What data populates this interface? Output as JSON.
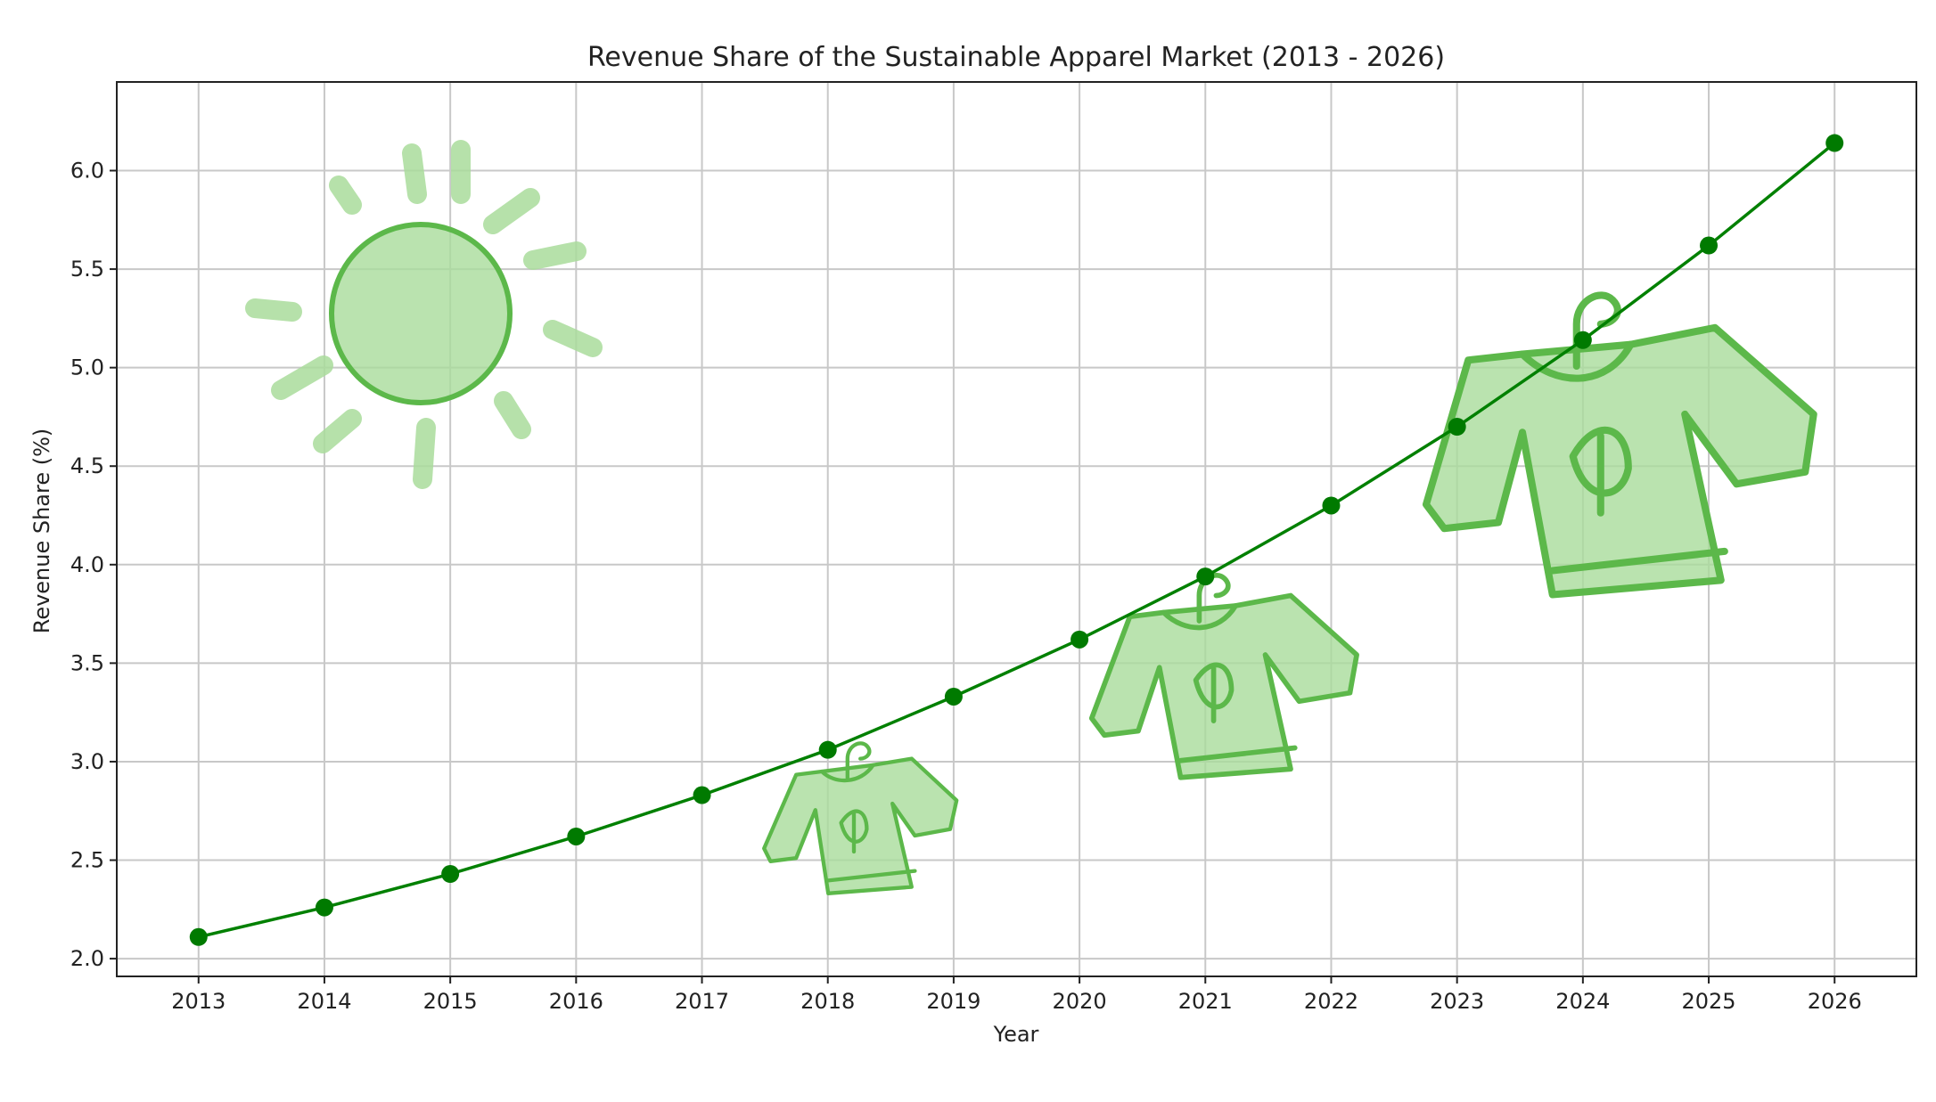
{
  "chart_data": {
    "type": "line",
    "title": "Revenue Share of the Sustainable Apparel Market (2013 - 2026)",
    "xlabel": "Year",
    "ylabel": "Revenue Share (%)",
    "x": [
      2013,
      2014,
      2015,
      2016,
      2017,
      2018,
      2019,
      2020,
      2021,
      2022,
      2023,
      2024,
      2025,
      2026
    ],
    "series": [
      {
        "values": [
          2.11,
          2.26,
          2.43,
          2.62,
          2.83,
          3.06,
          3.33,
          3.62,
          3.94,
          4.3,
          4.7,
          5.14,
          5.62,
          6.14
        ]
      }
    ],
    "xlim": [
      2012.35,
      2026.65
    ],
    "ylim": [
      1.91,
      6.45
    ],
    "yticks": [
      2.0,
      2.5,
      3.0,
      3.5,
      4.0,
      4.5,
      5.0,
      5.5,
      6.0
    ],
    "ytick_labels": [
      "2.0",
      "2.5",
      "3.0",
      "3.5",
      "4.0",
      "4.5",
      "5.0",
      "5.5",
      "6.0"
    ],
    "grid": true,
    "colors": {
      "line": "#008000",
      "marker": "#007a00",
      "grid": "#c8c8c8",
      "doodle": "#5cb84a",
      "doodle_fill": "#a9dc9b"
    },
    "decorations": [
      "sun-icon",
      "sweater-small-icon",
      "sweater-medium-icon",
      "sweater-large-icon"
    ]
  }
}
